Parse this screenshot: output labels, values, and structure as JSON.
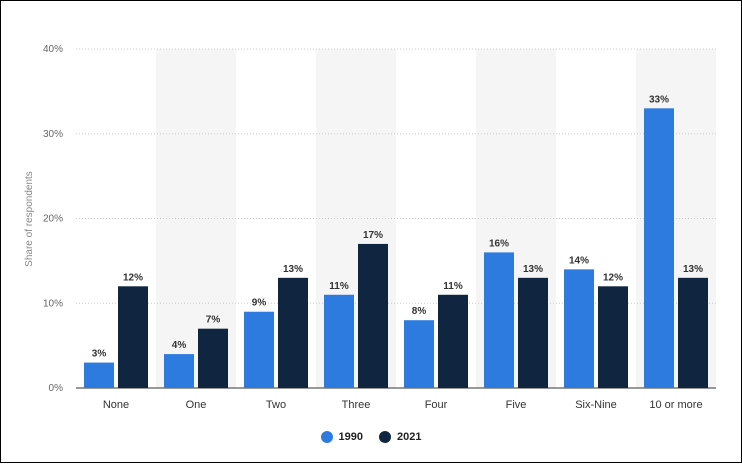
{
  "chart_data": {
    "type": "bar",
    "categories": [
      "None",
      "One",
      "Two",
      "Three",
      "Four",
      "Five",
      "Six-Nine",
      "10 or more"
    ],
    "series": [
      {
        "name": "1990",
        "values": [
          3,
          4,
          9,
          11,
          8,
          16,
          14,
          33
        ],
        "labels": [
          "3%",
          "4%",
          "9%",
          "11%",
          "8%",
          "16%",
          "14%",
          "33%"
        ],
        "color": "#2e7be0"
      },
      {
        "name": "2021",
        "values": [
          12,
          7,
          13,
          17,
          11,
          13,
          12,
          13
        ],
        "labels": [
          "12%",
          "7%",
          "13%",
          "17%",
          "11%",
          "13%",
          "12%",
          "13%"
        ],
        "color": "#0f2540"
      }
    ],
    "ylabel": "Share of respondents",
    "ylim": [
      0,
      40
    ],
    "yticks": [
      0,
      10,
      20,
      30,
      40
    ],
    "ytick_labels": [
      "0%",
      "10%",
      "20%",
      "30%",
      "40%"
    ],
    "grid": true,
    "legend_position": "bottom-center",
    "band_color": "#f5f5f5"
  }
}
